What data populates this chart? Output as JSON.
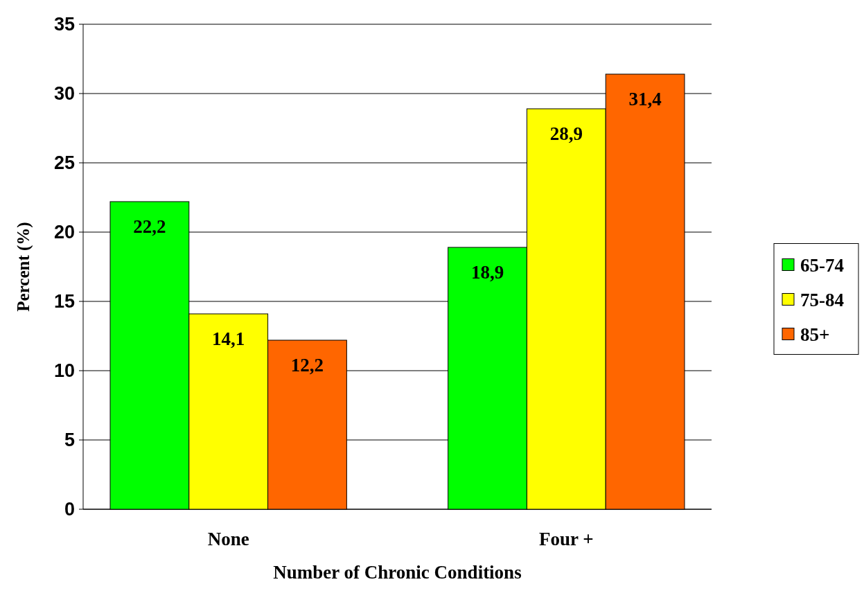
{
  "chart_data": {
    "type": "bar",
    "xlabel": "Number of Chronic Conditions",
    "ylabel": "Percent (%)",
    "categories": [
      "None",
      "Four +"
    ],
    "series": [
      {
        "name": "65-74",
        "color": "#00ff00",
        "values": [
          22.2,
          18.9
        ],
        "value_labels": [
          "22,2",
          "18,9"
        ]
      },
      {
        "name": "75-84",
        "color": "#ffff00",
        "values": [
          14.1,
          28.9
        ],
        "value_labels": [
          "14,1",
          "28,9"
        ]
      },
      {
        "name": "85+",
        "color": "#ff6600",
        "values": [
          12.2,
          31.4
        ],
        "value_labels": [
          "12,2",
          "31,4"
        ]
      }
    ],
    "ylim": [
      0,
      35
    ],
    "yticks": [
      0,
      5,
      10,
      15,
      20,
      25,
      30,
      35
    ],
    "grid": "y",
    "legend": "right"
  }
}
